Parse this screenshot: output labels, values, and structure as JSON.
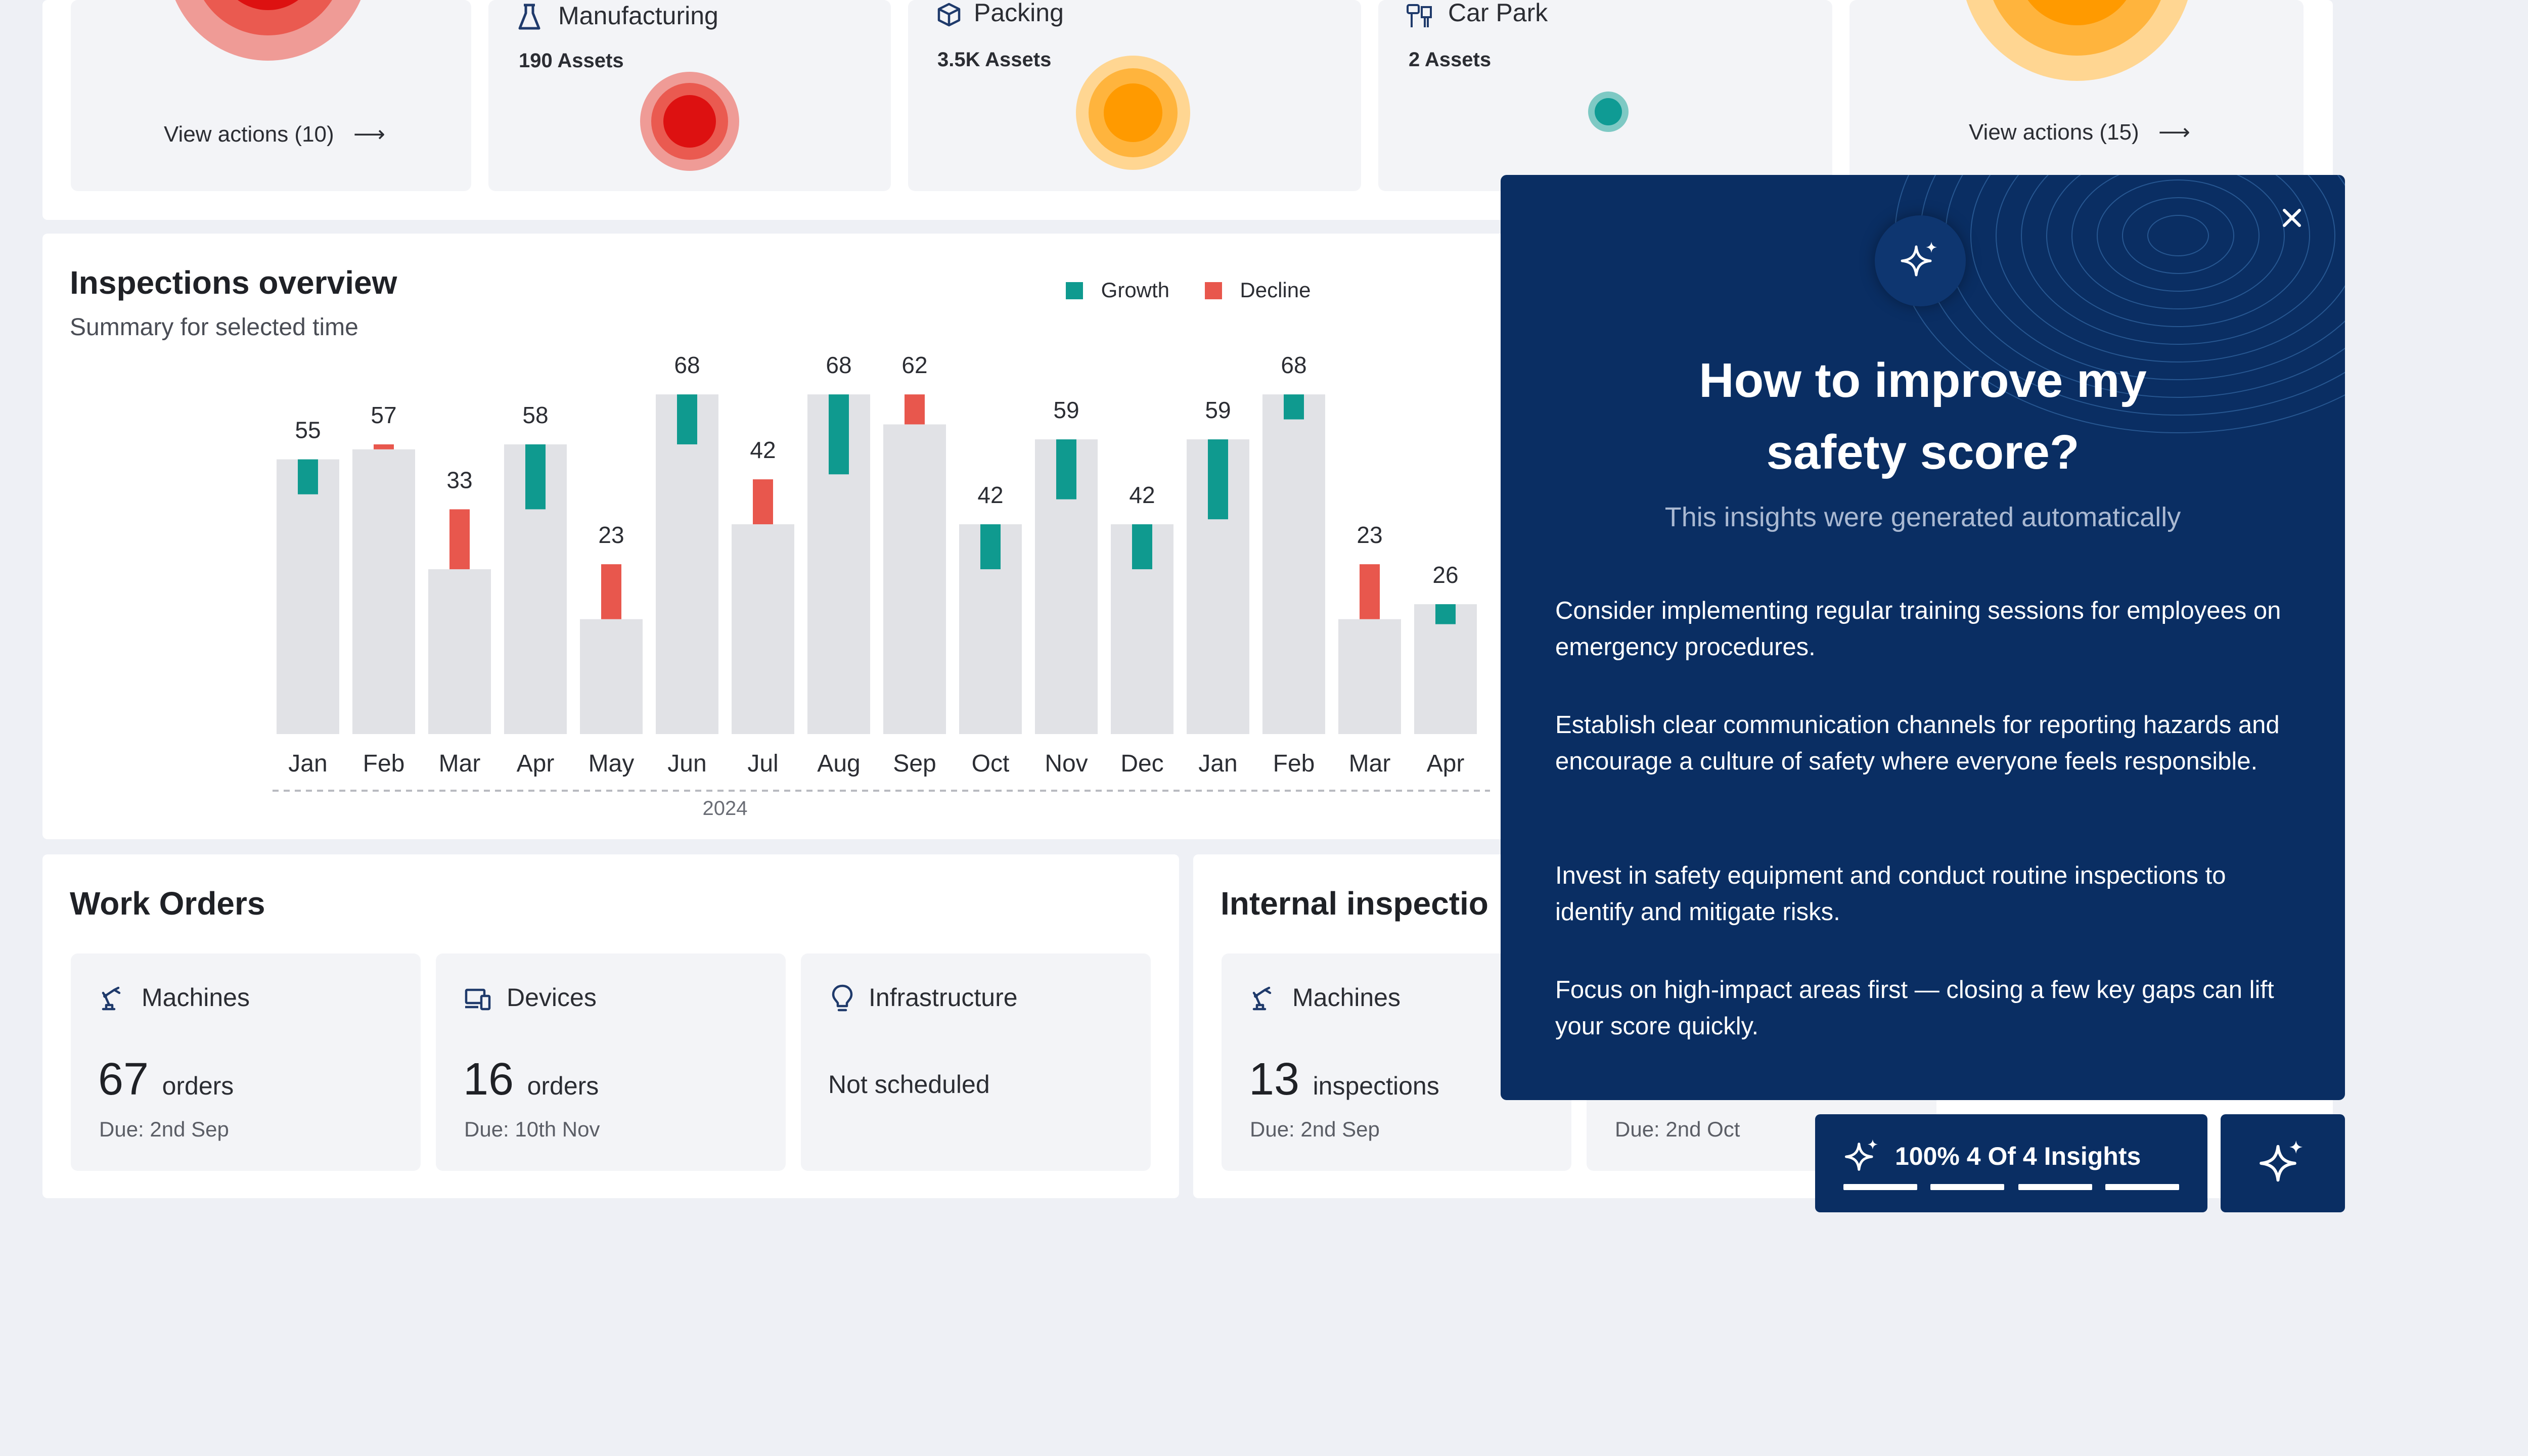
{
  "top_cards": [
    {
      "name": "",
      "assets": "",
      "link": "View actions (10)",
      "dot_color": "#dd1111"
    },
    {
      "name": "Manufacturing",
      "assets": "190 Assets",
      "icon": "flask-icon",
      "dot_color": "#dd1111"
    },
    {
      "name": "Packing",
      "assets": "3.5K Assets",
      "icon": "box-icon",
      "dot_color": "#ff9a00"
    },
    {
      "name": "Car Park",
      "assets": "2 Assets",
      "icon": "car-park-icon",
      "dot_color": "#0f9b94"
    },
    {
      "name": "",
      "assets": "",
      "link": "View actions (15)",
      "dot_color": "#ff9a00"
    }
  ],
  "inspections": {
    "title": "Inspections overview",
    "subtitle": "Summary for selected time",
    "legend": [
      {
        "label": "Growth",
        "color": "#0f9a8f"
      },
      {
        "label": "Decline",
        "color": "#e8574d"
      }
    ],
    "year_label": "2024"
  },
  "chart_data": {
    "type": "bar",
    "title": "Inspections overview",
    "subtitle": "Summary for selected time",
    "categories": [
      "Jan",
      "Feb",
      "Mar",
      "Apr",
      "May",
      "Jun",
      "Jul",
      "Aug",
      "Sep",
      "Oct",
      "Nov",
      "Dec",
      "Jan",
      "Feb",
      "Mar",
      "Apr"
    ],
    "group_labels": [
      {
        "label": "2024",
        "from": 0,
        "to": 11
      }
    ],
    "values": [
      55,
      57,
      33,
      58,
      23,
      68,
      42,
      68,
      62,
      42,
      59,
      42,
      59,
      68,
      23,
      26
    ],
    "change": [
      {
        "type": "growth",
        "size": 7
      },
      {
        "type": "decline",
        "size": 1
      },
      {
        "type": "decline",
        "size": 12
      },
      {
        "type": "growth",
        "size": 13
      },
      {
        "type": "decline",
        "size": 11
      },
      {
        "type": "growth",
        "size": 10
      },
      {
        "type": "decline",
        "size": 9
      },
      {
        "type": "growth",
        "size": 16
      },
      {
        "type": "decline",
        "size": 6
      },
      {
        "type": "growth",
        "size": 9
      },
      {
        "type": "growth",
        "size": 12
      },
      {
        "type": "growth",
        "size": 9
      },
      {
        "type": "growth",
        "size": 16
      },
      {
        "type": "growth",
        "size": 5
      },
      {
        "type": "decline",
        "size": 11
      },
      {
        "type": "growth",
        "size": 4
      }
    ],
    "legend": [
      {
        "label": "Growth",
        "color": "#0f9a8f"
      },
      {
        "label": "Decline",
        "color": "#e8574d"
      }
    ],
    "legend_position": "top-right",
    "ylim": [
      0,
      70
    ],
    "grid": false
  },
  "work_orders": {
    "title": "Work Orders",
    "cards": [
      {
        "label": "Machines",
        "icon": "robot-arm-icon",
        "count": "67",
        "unit": "orders",
        "due": "Due: 2nd Sep"
      },
      {
        "label": "Devices",
        "icon": "devices-icon",
        "count": "16",
        "unit": "orders",
        "due": "Due: 10th Nov"
      },
      {
        "label": "Infrastructure",
        "icon": "lightbulb-icon",
        "status": "Not scheduled"
      }
    ]
  },
  "internal": {
    "title": "Internal inspectio",
    "cards": [
      {
        "label": "Machines",
        "icon": "robot-arm-icon",
        "count": "13",
        "unit": "inspections",
        "due": "Due: 2nd Sep"
      },
      {
        "due": "Due: 2nd Oct"
      }
    ]
  },
  "insights_panel": {
    "title_line1": "How to improve my",
    "title_line2": "safety score?",
    "subtitle": "This insights were generated automatically",
    "points": [
      "Consider implementing regular training sessions for employees on emergency procedures.",
      "Establish clear communication channels for reporting hazards and encourage a culture of safety where everyone feels responsible.",
      "Invest in safety equipment and conduct routine inspections to identify and mitigate risks.",
      "Focus on high-impact areas first — closing a few key gaps can lift your score quickly."
    ]
  },
  "progress": {
    "label": "100% 4 Of 4 Insights",
    "segments_total": 4,
    "segments_done": 4
  },
  "colors": {
    "navy": "#0a2e63",
    "teal": "#0f9a8f",
    "red": "#e8574d",
    "bar_gray": "#e1e2e6"
  }
}
